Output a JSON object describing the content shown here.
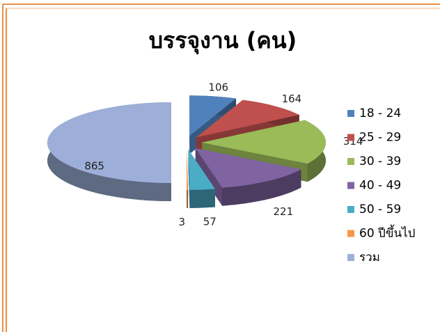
{
  "chart_data": {
    "type": "pie",
    "title": "บรรจุงาน (คน)",
    "categories": [
      "18 - 24",
      "25 - 29",
      "30 - 39",
      "40 - 49",
      "50 - 59",
      "60 ปีขึ้นไป",
      "รวม"
    ],
    "values": [
      106,
      164,
      314,
      221,
      57,
      3,
      865
    ],
    "colors": [
      "#4f81bd",
      "#c0504d",
      "#9bbb59",
      "#8064a2",
      "#4bacc6",
      "#f79646",
      "#9dafd8"
    ],
    "legend": "right"
  }
}
